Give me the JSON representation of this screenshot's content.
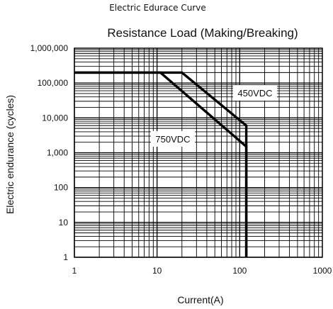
{
  "caption": "Electric Edurace Curve",
  "chart_data": {
    "type": "line",
    "title": "Resistance Load (Making/Breaking)",
    "xlabel": "Current(A)",
    "ylabel": "Electric endurance (cycles)",
    "x_scale": "log",
    "y_scale": "log",
    "xlim": [
      1,
      1000
    ],
    "ylim": [
      1,
      1000000
    ],
    "x_ticks": [
      "1",
      "10",
      "100",
      "1000"
    ],
    "y_ticks": [
      "1",
      "10",
      "100",
      "1,000",
      "10,000",
      "100,000",
      "1,000,000"
    ],
    "grid": true,
    "series": [
      {
        "name": "450VDC",
        "points": [
          [
            1,
            200000
          ],
          [
            20,
            200000
          ],
          [
            120,
            6000
          ],
          [
            120,
            1
          ]
        ]
      },
      {
        "name": "750VDC",
        "points": [
          [
            1,
            200000
          ],
          [
            11,
            200000
          ],
          [
            120,
            1500
          ],
          [
            120,
            1
          ]
        ]
      }
    ]
  }
}
